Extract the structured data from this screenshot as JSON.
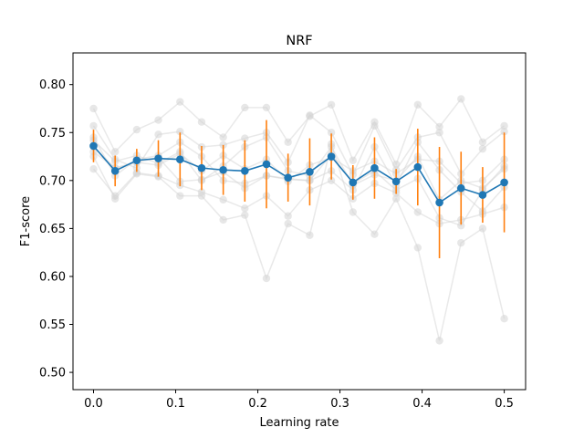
{
  "chart_data": {
    "type": "line",
    "title": "NRF",
    "xlabel": "Learning rate",
    "ylabel": "F1-score",
    "xlim": [
      -0.025,
      0.526
    ],
    "ylim": [
      0.482,
      0.833
    ],
    "xticks": [
      0.0,
      0.1,
      0.2,
      0.3,
      0.4,
      0.5
    ],
    "xtick_labels": [
      "0.0",
      "0.1",
      "0.2",
      "0.3",
      "0.4",
      "0.5"
    ],
    "yticks": [
      0.5,
      0.55,
      0.6,
      0.65,
      0.7,
      0.75,
      0.8
    ],
    "ytick_labels": [
      "0.50",
      "0.55",
      "0.60",
      "0.65",
      "0.70",
      "0.75",
      "0.80"
    ],
    "grid": false,
    "colors": {
      "mean": "#1f77b4",
      "errorbar": "#ff7f0e",
      "runs": "#d3d3d3"
    },
    "x": [
      0.0,
      0.0263,
      0.0526,
      0.0789,
      0.1053,
      0.1316,
      0.1579,
      0.1842,
      0.2105,
      0.2368,
      0.2632,
      0.2895,
      0.3158,
      0.3421,
      0.3684,
      0.3947,
      0.4211,
      0.4474,
      0.4737,
      0.5
    ],
    "mean": [
      0.736,
      0.71,
      0.721,
      0.723,
      0.722,
      0.713,
      0.711,
      0.71,
      0.717,
      0.703,
      0.709,
      0.725,
      0.698,
      0.713,
      0.699,
      0.714,
      0.677,
      0.692,
      0.685,
      0.698
    ],
    "std": [
      0.017,
      0.016,
      0.012,
      0.019,
      0.028,
      0.023,
      0.026,
      0.032,
      0.046,
      0.025,
      0.035,
      0.024,
      0.018,
      0.032,
      0.013,
      0.04,
      0.058,
      0.038,
      0.029,
      0.052
    ],
    "runs": [
      [
        0.775,
        0.73,
        0.753,
        0.763,
        0.782,
        0.761,
        0.745,
        0.776,
        0.776,
        0.74,
        0.767,
        0.779,
        0.721,
        0.761,
        0.717,
        0.779,
        0.756,
        0.785,
        0.74,
        0.757
      ],
      [
        0.757,
        0.722,
        0.713,
        0.748,
        0.751,
        0.735,
        0.737,
        0.744,
        0.75,
        0.719,
        0.768,
        0.75,
        0.706,
        0.757,
        0.711,
        0.745,
        0.75,
        0.707,
        0.733,
        0.751
      ],
      [
        0.725,
        0.681,
        0.707,
        0.704,
        0.684,
        0.684,
        0.659,
        0.664,
        0.598,
        0.655,
        0.643,
        0.738,
        0.667,
        0.644,
        0.681,
        0.63,
        0.533,
        0.635,
        0.65,
        0.556
      ],
      [
        0.712,
        0.684,
        0.708,
        0.705,
        0.695,
        0.688,
        0.68,
        0.671,
        0.684,
        0.663,
        0.69,
        0.7,
        0.681,
        0.697,
        0.687,
        0.667,
        0.655,
        0.659,
        0.665,
        0.672
      ],
      [
        0.742,
        0.72,
        0.726,
        0.718,
        0.73,
        0.7,
        0.715,
        0.735,
        0.745,
        0.71,
        0.705,
        0.735,
        0.695,
        0.706,
        0.7,
        0.725,
        0.68,
        0.7,
        0.692,
        0.712
      ],
      [
        0.73,
        0.713,
        0.719,
        0.716,
        0.728,
        0.71,
        0.726,
        0.712,
        0.722,
        0.699,
        0.716,
        0.724,
        0.71,
        0.72,
        0.707,
        0.722,
        0.72,
        0.697,
        0.7,
        0.722
      ],
      [
        0.745,
        0.705,
        0.722,
        0.726,
        0.74,
        0.725,
        0.7,
        0.697,
        0.705,
        0.702,
        0.7,
        0.71,
        0.69,
        0.735,
        0.695,
        0.74,
        0.711,
        0.688,
        0.668,
        0.693
      ],
      [
        0.735,
        0.713,
        0.719,
        0.724,
        0.699,
        0.701,
        0.709,
        0.692,
        0.705,
        0.701,
        0.7,
        0.727,
        0.697,
        0.71,
        0.69,
        0.702,
        0.661,
        0.653,
        0.69,
        0.715
      ]
    ]
  }
}
